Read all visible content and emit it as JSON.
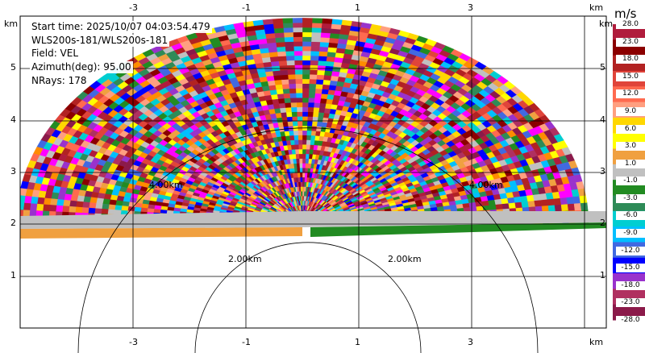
{
  "info": {
    "start_time": "Start time: 2025/10/07 04:03:54.479",
    "instrument": "WLS200s-181/WLS200s-181",
    "field": "Field: VEL",
    "azimuth": "Azimuth(deg): 95.00",
    "nrays": "NRays: 178"
  },
  "axes": {
    "unit": "km",
    "x_ticks": [
      "-3",
      "-1",
      "1",
      "3"
    ],
    "y_ticks": [
      "1",
      "2",
      "3",
      "4",
      "5"
    ]
  },
  "range_rings": [
    "2.00km",
    "2.00km",
    "4.00km",
    "4.00km"
  ],
  "colorbar": {
    "unit": "m/s",
    "levels": [
      "28.0",
      "23.0",
      "18.0",
      "15.0",
      "12.0",
      "9.0",
      "6.0",
      "3.0",
      "1.0",
      "-1.0",
      "-3.0",
      "-6.0",
      "-9.0",
      "-12.0",
      "-15.0",
      "-18.0",
      "-23.0",
      "-28.0"
    ],
    "colors": [
      "#b01c3c",
      "#8b0000",
      "#b22222",
      "#e0443a",
      "#ff6a4f",
      "#ff9f80",
      "#ffd700",
      "#ffff00",
      "#f0a040",
      "#c0c0c0",
      "#228b22",
      "#2e8b57",
      "#00ced1",
      "#00bfff",
      "#4169e1",
      "#0000ff",
      "#9932cc",
      "#b03060",
      "#8b1a4a"
    ]
  }
}
